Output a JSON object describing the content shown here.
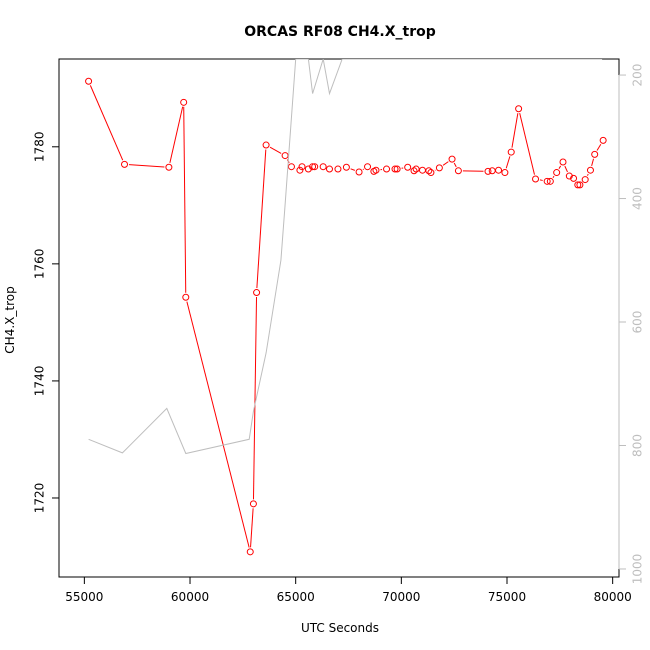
{
  "chart_data": {
    "type": "line",
    "title": "ORCAS RF08 CH4.X_trop",
    "xlabel": "UTC Seconds",
    "ylabel": "CH4.X_trop",
    "xlim": [
      53800,
      80300
    ],
    "ylim": [
      1706.5,
      1795
    ],
    "x_ticks": [
      "55000",
      "60000",
      "65000",
      "70000",
      "75000",
      "80000"
    ],
    "x_tick_values": [
      55000,
      60000,
      65000,
      70000,
      75000,
      80000
    ],
    "y_ticks": [
      "1720",
      "1740",
      "1760",
      "1780"
    ],
    "y_tick_values": [
      1720,
      1740,
      1760,
      1780
    ],
    "y2lim": [
      1013,
      174
    ],
    "y2_ticks": [
      "200",
      "400",
      "600",
      "800",
      "1000"
    ],
    "y2_tick_values": [
      200,
      400,
      600,
      800,
      1000
    ],
    "grid": false,
    "series": [
      {
        "color": "#ff0000",
        "style": "points-and-lines",
        "axis": "left",
        "x": [
          55200,
          56900,
          59000,
          59700,
          59800,
          62850,
          63000,
          63150,
          63600,
          64500,
          64800,
          65200,
          65300,
          65600,
          65800,
          65900,
          66300,
          66600,
          67000,
          67400,
          68000,
          68400,
          68700,
          68800,
          69300,
          69700,
          69800,
          70300,
          70600,
          70700,
          71000,
          71300,
          71400,
          71800,
          72400,
          72700,
          74100,
          74300,
          74600,
          74900,
          75200,
          75550,
          76350,
          76900,
          77050,
          77350,
          77650,
          77950,
          78150,
          78350,
          78450,
          78700,
          78950,
          79150,
          79550
        ],
        "y": [
          1791.2,
          1777.0,
          1776.5,
          1787.6,
          1754.3,
          1710.8,
          1719.0,
          1755.1,
          1780.3,
          1778.5,
          1776.6,
          1776.0,
          1776.6,
          1776.2,
          1776.6,
          1776.6,
          1776.6,
          1776.2,
          1776.2,
          1776.5,
          1775.7,
          1776.6,
          1775.8,
          1776.0,
          1776.2,
          1776.2,
          1776.2,
          1776.5,
          1775.9,
          1776.2,
          1776.0,
          1775.9,
          1775.6,
          1776.4,
          1777.9,
          1775.9,
          1775.8,
          1775.9,
          1776.0,
          1775.6,
          1779.1,
          1786.5,
          1774.5,
          1774.1,
          1774.1,
          1775.6,
          1777.4,
          1775.0,
          1774.6,
          1773.5,
          1773.5,
          1774.4,
          1776.0,
          1778.7,
          1781.1
        ]
      },
      {
        "color": "#bebebe",
        "style": "line",
        "axis": "right",
        "x": [
          55200,
          56800,
          58900,
          59800,
          62800,
          63000,
          63600,
          64300,
          64500,
          65000,
          65600,
          65800,
          66300,
          66600,
          67200,
          67800,
          68300,
          68900,
          69300,
          69700,
          70200,
          70600,
          71200,
          71600,
          72100,
          72400,
          72800,
          73300,
          73800,
          74300,
          74700,
          75100,
          75600,
          76200,
          76700,
          77300,
          77700,
          78300,
          78800,
          79500
        ],
        "y": [
          790,
          812,
          740,
          813,
          790,
          745,
          650,
          500,
          410,
          174,
          174,
          230,
          174,
          230,
          174,
          174,
          174,
          174,
          174,
          174,
          174,
          174,
          174,
          174,
          174,
          174,
          174,
          174,
          174,
          174,
          174,
          174,
          174,
          174,
          174,
          174,
          174,
          174,
          174,
          174
        ]
      }
    ]
  }
}
